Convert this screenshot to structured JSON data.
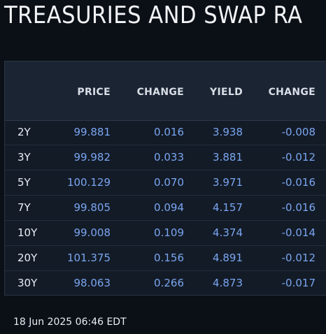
{
  "title": "TREASURIES AND SWAP RA",
  "table": {
    "headers": [
      "PRICE",
      "CHANGE",
      "YIELD",
      "CHANGE"
    ],
    "rows": [
      {
        "tenor": "2Y",
        "price": "99.881",
        "price_change": "0.016",
        "yield": "3.938",
        "yield_change": "-0.008"
      },
      {
        "tenor": "3Y",
        "price": "99.982",
        "price_change": "0.033",
        "yield": "3.881",
        "yield_change": "-0.012"
      },
      {
        "tenor": "5Y",
        "price": "100.129",
        "price_change": "0.070",
        "yield": "3.971",
        "yield_change": "-0.016"
      },
      {
        "tenor": "7Y",
        "price": "99.805",
        "price_change": "0.094",
        "yield": "4.157",
        "yield_change": "-0.016"
      },
      {
        "tenor": "10Y",
        "price": "99.008",
        "price_change": "0.109",
        "yield": "4.374",
        "yield_change": "-0.014"
      },
      {
        "tenor": "20Y",
        "price": "101.375",
        "price_change": "0.156",
        "yield": "4.891",
        "yield_change": "-0.012"
      },
      {
        "tenor": "30Y",
        "price": "98.063",
        "price_change": "0.266",
        "yield": "4.873",
        "yield_change": "-0.017"
      }
    ]
  },
  "timestamp": "18 Jun 2025 06:46 EDT",
  "colors": {
    "background": "#0b0f16",
    "panel": "#131b27",
    "header": "#1a2433",
    "value": "#7aa6f0",
    "text": "#e9edf3"
  }
}
